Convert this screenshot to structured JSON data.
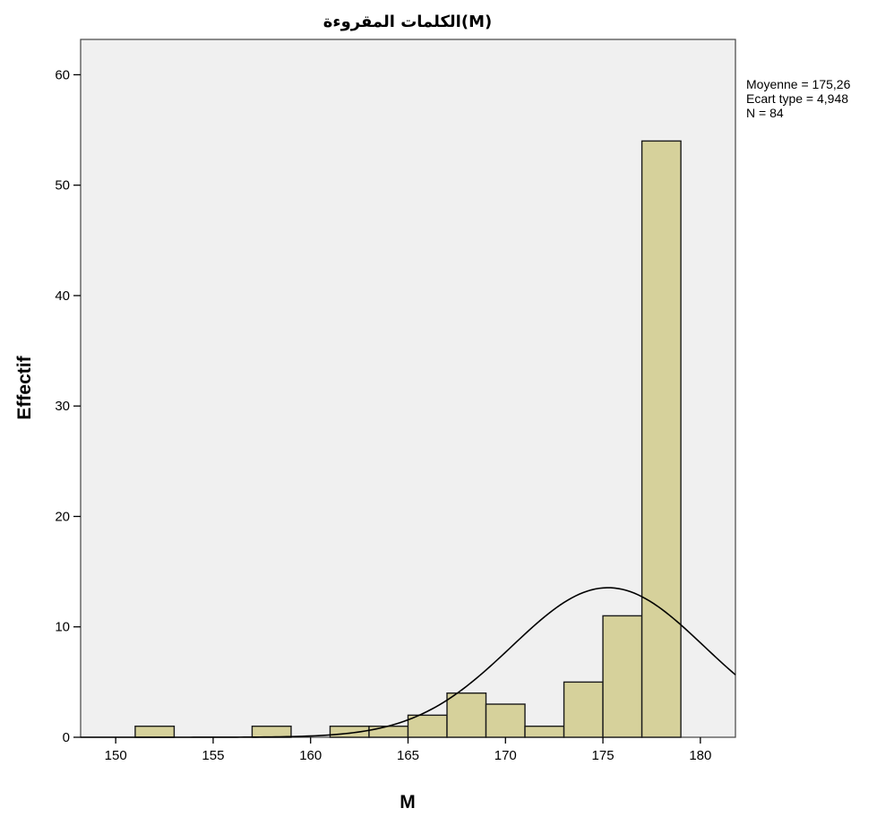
{
  "chart_data": {
    "type": "bar",
    "title": "الكلمات المقروءة(M)",
    "xlabel": "M",
    "ylabel": "Effectif",
    "xlim": [
      148.2,
      181.8
    ],
    "ylim": [
      0,
      63.2
    ],
    "x_ticks": [
      150,
      155,
      160,
      165,
      170,
      175,
      180
    ],
    "y_ticks": [
      0,
      10,
      20,
      30,
      40,
      50,
      60
    ],
    "bin_width": 2,
    "bins": [
      {
        "x0": 151,
        "x1": 153,
        "count": 1
      },
      {
        "x0": 157,
        "x1": 159,
        "count": 1
      },
      {
        "x0": 161,
        "x1": 163,
        "count": 1
      },
      {
        "x0": 163,
        "x1": 165,
        "count": 1
      },
      {
        "x0": 165,
        "x1": 167,
        "count": 2
      },
      {
        "x0": 167,
        "x1": 169,
        "count": 4
      },
      {
        "x0": 169,
        "x1": 171,
        "count": 3
      },
      {
        "x0": 171,
        "x1": 173,
        "count": 1
      },
      {
        "x0": 173,
        "x1": 175,
        "count": 5
      },
      {
        "x0": 175,
        "x1": 177,
        "count": 11
      },
      {
        "x0": 177,
        "x1": 179,
        "count": 54
      }
    ],
    "normal_curve": {
      "mean": 175.26,
      "sd": 4.948,
      "n": 84
    },
    "colors": {
      "bar_fill": "#d6d19b",
      "bar_stroke": "#1a1a1a",
      "plot_bg": "#f0f0f0",
      "curve": "#000000"
    }
  },
  "stats": {
    "mean_label": "Moyenne = 175,26",
    "sd_label": "Ecart type = 4,948",
    "n_label": "N = 84"
  }
}
